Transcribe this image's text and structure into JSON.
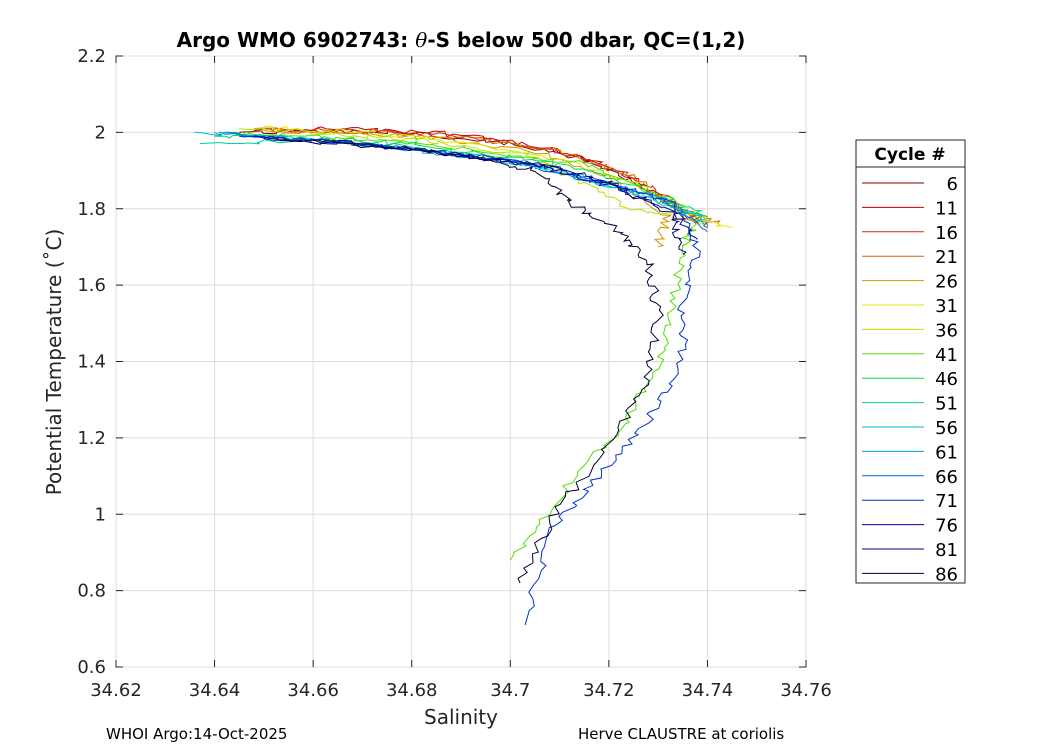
{
  "chart_data": {
    "type": "line",
    "title_pre": "Argo WMO 6902743: ",
    "title_theta": "θ",
    "title_post": "-S below 500 dbar,  QC=(1,2)",
    "xlabel": "Salinity",
    "ylabel": "Potential Temperature (˚C)",
    "xlim": [
      34.62,
      34.76
    ],
    "ylim": [
      0.6,
      2.2
    ],
    "xticks": [
      34.62,
      34.64,
      34.66,
      34.68,
      34.7,
      34.72,
      34.74,
      34.76
    ],
    "xtick_labels": [
      "34.62",
      "34.64",
      "34.66",
      "34.68",
      "34.7",
      "34.72",
      "34.74",
      "34.76"
    ],
    "yticks": [
      0.6,
      0.8,
      1,
      1.2,
      1.4,
      1.6,
      1.8,
      2,
      2.2
    ],
    "ytick_labels": [
      "0.6",
      "0.8",
      "1",
      "1.2",
      "1.4",
      "1.6",
      "1.8",
      "2",
      "2.2"
    ],
    "grid": true,
    "legend_title": "Cycle #",
    "legend_position": "right",
    "series": [
      {
        "name": "6",
        "color": "#800000",
        "points": [
          [
            34.645,
            2.0
          ],
          [
            34.66,
            2.005
          ],
          [
            34.68,
            2.0
          ],
          [
            34.7,
            1.97
          ],
          [
            34.715,
            1.93
          ],
          [
            34.725,
            1.87
          ],
          [
            34.735,
            1.79
          ]
        ]
      },
      {
        "name": "11",
        "color": "#c00000",
        "points": [
          [
            34.648,
            2.005
          ],
          [
            34.665,
            2.01
          ],
          [
            34.685,
            2.0
          ],
          [
            34.705,
            1.965
          ],
          [
            34.72,
            1.91
          ],
          [
            34.73,
            1.84
          ],
          [
            34.738,
            1.76
          ]
        ]
      },
      {
        "name": "16",
        "color": "#d42a00",
        "points": [
          [
            34.65,
            2.005
          ],
          [
            34.67,
            2.005
          ],
          [
            34.69,
            1.99
          ],
          [
            34.708,
            1.96
          ],
          [
            34.722,
            1.9
          ],
          [
            34.733,
            1.82
          ],
          [
            34.74,
            1.75
          ]
        ]
      },
      {
        "name": "21",
        "color": "#cc6600",
        "points": [
          [
            34.652,
            2.0
          ],
          [
            34.672,
            2.0
          ],
          [
            34.692,
            1.985
          ],
          [
            34.71,
            1.95
          ],
          [
            34.724,
            1.89
          ],
          [
            34.734,
            1.8
          ],
          [
            34.742,
            1.76
          ]
        ]
      },
      {
        "name": "26",
        "color": "#cc9900",
        "points": [
          [
            34.648,
            2.01
          ],
          [
            34.668,
            2.0
          ],
          [
            34.688,
            1.98
          ],
          [
            34.706,
            1.945
          ],
          [
            34.72,
            1.88
          ],
          [
            34.732,
            1.78
          ],
          [
            34.73,
            1.7
          ]
        ]
      },
      {
        "name": "31",
        "color": "#e6e600",
        "points": [
          [
            34.65,
            2.015
          ],
          [
            34.67,
            2.0
          ],
          [
            34.69,
            1.975
          ],
          [
            34.71,
            1.93
          ],
          [
            34.725,
            1.87
          ],
          [
            34.735,
            1.79
          ],
          [
            34.745,
            1.75
          ]
        ]
      },
      {
        "name": "36",
        "color": "#b3e600",
        "points": [
          [
            34.645,
            2.01
          ],
          [
            34.665,
            1.995
          ],
          [
            34.685,
            1.975
          ],
          [
            34.703,
            1.94
          ],
          [
            34.712,
            1.89
          ],
          [
            34.725,
            1.8
          ],
          [
            34.74,
            1.76
          ]
        ]
      },
      {
        "name": "41",
        "color": "#55dd00",
        "points": [
          [
            34.642,
            2.0
          ],
          [
            34.662,
            1.99
          ],
          [
            34.682,
            1.97
          ],
          [
            34.7,
            1.94
          ],
          [
            34.715,
            1.92
          ],
          [
            34.728,
            1.85
          ],
          [
            34.738,
            1.78
          ],
          [
            34.735,
            1.7
          ],
          [
            34.733,
            1.55
          ],
          [
            34.73,
            1.38
          ],
          [
            34.722,
            1.22
          ],
          [
            34.71,
            1.05
          ],
          [
            34.7,
            0.88
          ]
        ]
      },
      {
        "name": "46",
        "color": "#00dd44",
        "points": [
          [
            34.64,
            1.99
          ],
          [
            34.66,
            1.985
          ],
          [
            34.68,
            1.97
          ],
          [
            34.7,
            1.935
          ],
          [
            34.716,
            1.9
          ],
          [
            34.73,
            1.84
          ],
          [
            34.74,
            1.78
          ]
        ]
      },
      {
        "name": "51",
        "color": "#00cc99",
        "points": [
          [
            34.637,
            1.97
          ],
          [
            34.657,
            1.98
          ],
          [
            34.677,
            1.965
          ],
          [
            34.697,
            1.93
          ],
          [
            34.713,
            1.89
          ],
          [
            34.727,
            1.83
          ],
          [
            34.739,
            1.78
          ]
        ]
      },
      {
        "name": "56",
        "color": "#00bbcc",
        "points": [
          [
            34.636,
            2.0
          ],
          [
            34.656,
            1.985
          ],
          [
            34.676,
            1.96
          ],
          [
            34.696,
            1.93
          ],
          [
            34.712,
            1.89
          ],
          [
            34.726,
            1.84
          ],
          [
            34.74,
            1.77
          ]
        ]
      },
      {
        "name": "61",
        "color": "#0099dd",
        "points": [
          [
            34.64,
            2.0
          ],
          [
            34.66,
            1.98
          ],
          [
            34.68,
            1.955
          ],
          [
            34.7,
            1.925
          ],
          [
            34.716,
            1.88
          ],
          [
            34.73,
            1.83
          ],
          [
            34.74,
            1.75
          ]
        ]
      },
      {
        "name": "66",
        "color": "#0066dd",
        "points": [
          [
            34.642,
            1.995
          ],
          [
            34.662,
            1.98
          ],
          [
            34.682,
            1.955
          ],
          [
            34.702,
            1.92
          ],
          [
            34.718,
            1.87
          ],
          [
            34.732,
            1.82
          ],
          [
            34.74,
            1.74
          ]
        ]
      },
      {
        "name": "71",
        "color": "#0033cc",
        "points": [
          [
            34.645,
            1.99
          ],
          [
            34.665,
            1.975
          ],
          [
            34.685,
            1.95
          ],
          [
            34.705,
            1.92
          ],
          [
            34.72,
            1.87
          ],
          [
            34.733,
            1.81
          ],
          [
            34.738,
            1.7
          ],
          [
            34.735,
            1.55
          ],
          [
            34.735,
            1.4
          ],
          [
            34.728,
            1.25
          ],
          [
            34.718,
            1.1
          ],
          [
            34.708,
            0.95
          ],
          [
            34.703,
            0.71
          ]
        ]
      },
      {
        "name": "76",
        "color": "#0000aa",
        "points": [
          [
            34.648,
            1.99
          ],
          [
            34.668,
            1.97
          ],
          [
            34.688,
            1.945
          ],
          [
            34.706,
            1.915
          ],
          [
            34.72,
            1.86
          ],
          [
            34.732,
            1.8
          ],
          [
            34.738,
            1.72
          ]
        ]
      },
      {
        "name": "81",
        "color": "#000077",
        "points": [
          [
            34.65,
            1.985
          ],
          [
            34.67,
            1.97
          ],
          [
            34.69,
            1.94
          ],
          [
            34.708,
            1.91
          ],
          [
            34.722,
            1.86
          ],
          [
            34.733,
            1.78
          ],
          [
            34.735,
            1.68
          ]
        ]
      },
      {
        "name": "86",
        "color": "#000033",
        "points": [
          [
            34.652,
            1.98
          ],
          [
            34.672,
            1.965
          ],
          [
            34.692,
            1.94
          ],
          [
            34.705,
            1.9
          ],
          [
            34.712,
            1.82
          ],
          [
            34.722,
            1.74
          ],
          [
            34.728,
            1.65
          ],
          [
            34.73,
            1.52
          ],
          [
            34.728,
            1.35
          ],
          [
            34.72,
            1.18
          ],
          [
            34.71,
            1.02
          ],
          [
            34.702,
            0.82
          ]
        ]
      }
    ]
  },
  "footer": {
    "left": "WHOI Argo:14-Oct-2025",
    "right": "Herve CLAUSTRE at coriolis"
  }
}
